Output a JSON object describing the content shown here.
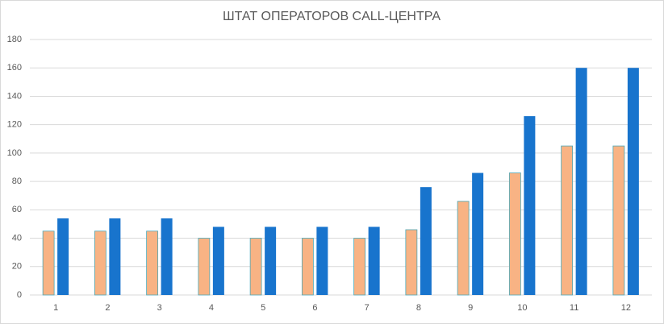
{
  "chart_data": {
    "type": "bar",
    "title": "ШТАТ ОПЕРАТОРОВ CALL-ЦЕНТРА",
    "categories": [
      "1",
      "2",
      "3",
      "4",
      "5",
      "6",
      "7",
      "8",
      "9",
      "10",
      "11",
      "12"
    ],
    "series": [
      {
        "color": "#f8b384",
        "values": [
          45,
          45,
          45,
          40,
          40,
          40,
          40,
          46,
          66,
          86,
          105,
          105
        ]
      },
      {
        "color": "#1874cd",
        "values": [
          54,
          54,
          54,
          48,
          48,
          48,
          48,
          76,
          86,
          126,
          160,
          160
        ]
      }
    ],
    "ylim": [
      0,
      180
    ],
    "yticks": [
      0,
      20,
      40,
      60,
      80,
      100,
      120,
      140,
      160,
      180
    ],
    "grid": true
  }
}
